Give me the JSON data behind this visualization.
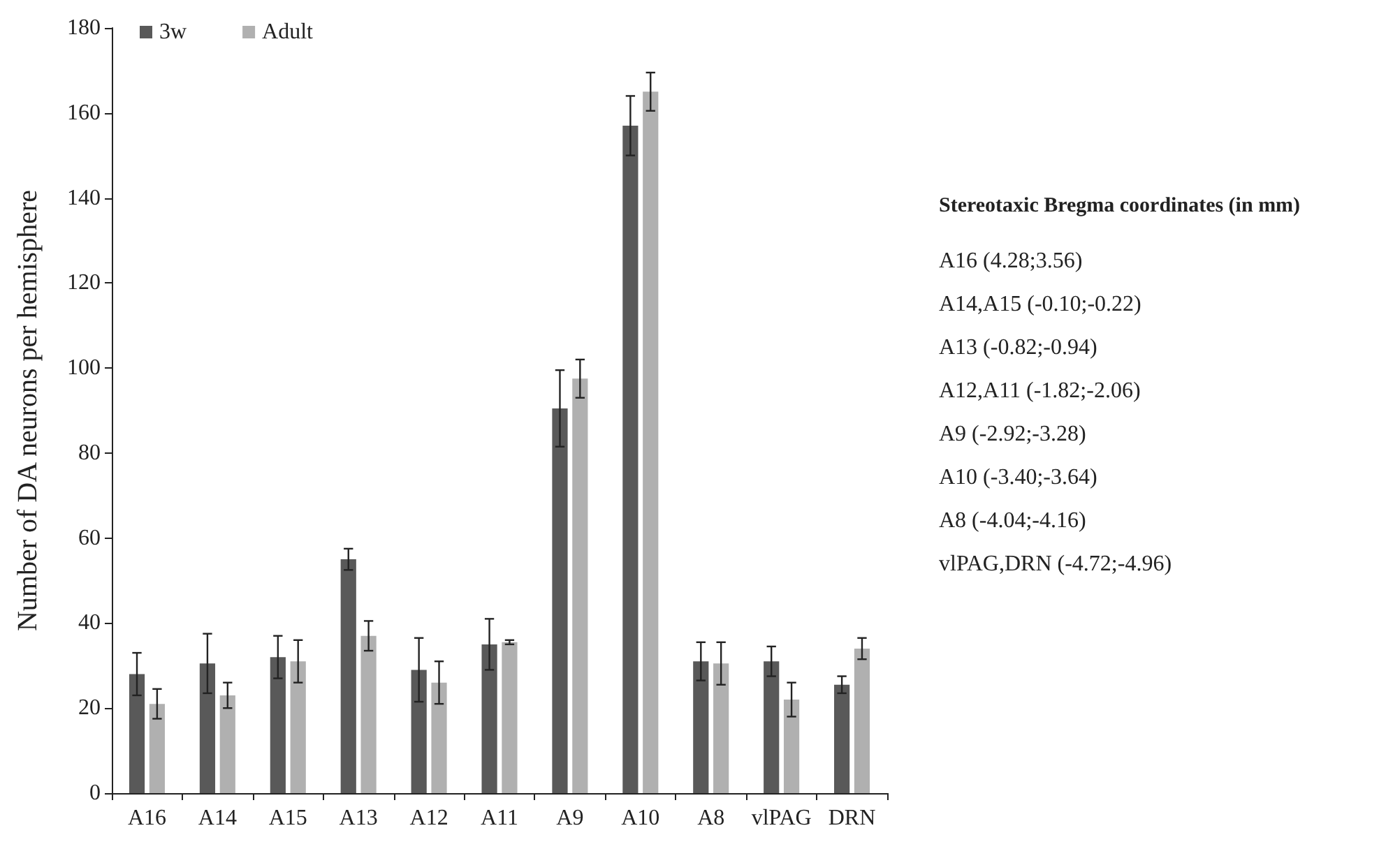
{
  "chart_data": {
    "type": "bar",
    "ylabel": "Number of DA neurons per hemisphere",
    "categories": [
      "A16",
      "A14",
      "A15",
      "A13",
      "A12",
      "A11",
      "A9",
      "A10",
      "A8",
      "vlPAG",
      "DRN"
    ],
    "series": [
      {
        "name": "3w",
        "color": "#595959",
        "values": [
          28,
          30.5,
          32,
          55,
          29,
          35,
          90.5,
          157,
          31,
          31,
          25.5
        ],
        "errors": [
          5,
          7,
          5,
          2.5,
          7.5,
          6,
          9,
          7,
          4.5,
          3.5,
          2
        ]
      },
      {
        "name": "Adult",
        "color": "#b0b0b0",
        "values": [
          21,
          23,
          31,
          37,
          26,
          35.5,
          97.5,
          165,
          30.5,
          22,
          34
        ],
        "errors": [
          3.5,
          3,
          5,
          3.5,
          5,
          0.5,
          4.5,
          4.5,
          5,
          4,
          2.5
        ]
      }
    ],
    "ylim": [
      0,
      180
    ],
    "yticks": [
      0,
      20,
      40,
      60,
      80,
      100,
      120,
      140,
      160,
      180
    ],
    "grid": false,
    "legend": "top left",
    "annotations": [
      "Stereotaxic Bregma coordinates (in mm)",
      "A16 (4.28;3.56)",
      "A14,A15 (-0.10;-0.22)",
      "A13 (-0.82;-0.94)",
      "A12,A11 (-1.82;-2.06)",
      "A9 (-2.92;-3.28)",
      "A10 (-3.40;-3.64)",
      "A8 (-4.04;-4.16)",
      "vlPAG,DRN (-4.72;-4.96)"
    ]
  }
}
